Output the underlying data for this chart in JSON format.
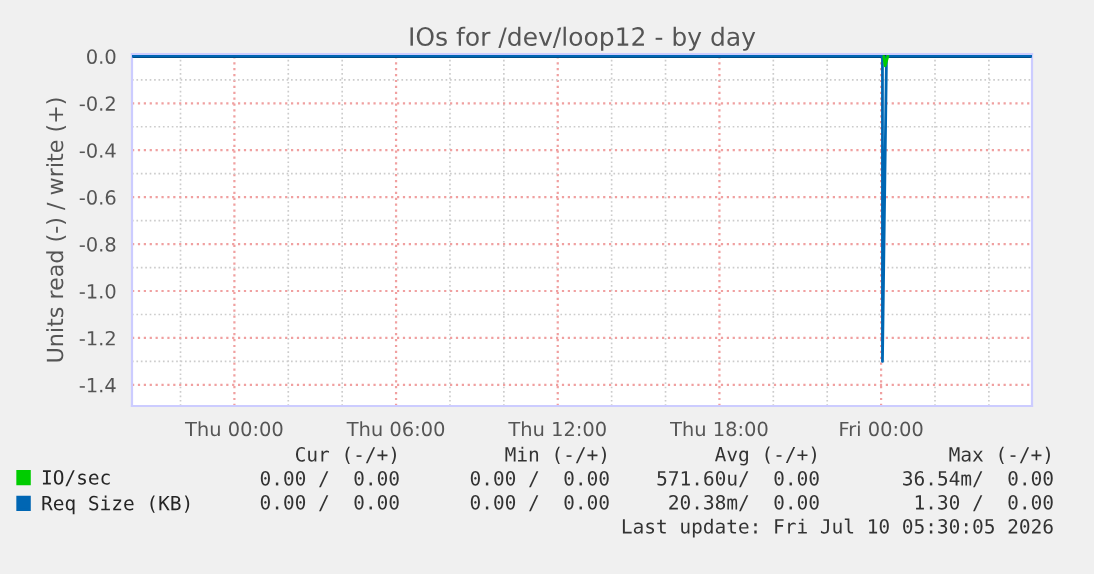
{
  "chart_data": {
    "type": "line",
    "title": "IOs for /dev/loop12 - by day",
    "ylabel": "Units read (-) / write (+)",
    "xlim": [
      "2026-07-08T20:12",
      "2026-07-10T05:36"
    ],
    "ylim": [
      -1.49,
      0.01
    ],
    "xticks": [
      {
        "value": "2026-07-09T00:00",
        "label": "Thu 00:00"
      },
      {
        "value": "2026-07-09T06:00",
        "label": "Thu 06:00"
      },
      {
        "value": "2026-07-09T12:00",
        "label": "Thu 12:00"
      },
      {
        "value": "2026-07-09T18:00",
        "label": "Thu 18:00"
      },
      {
        "value": "2026-07-10T00:00",
        "label": "Fri 00:00"
      }
    ],
    "yticks": [
      {
        "value": 0,
        "label": "0.0"
      },
      -0.2,
      -0.4,
      -0.6,
      -0.8,
      {
        "value": -1,
        "label": "-1.0"
      },
      -1.2,
      -1.4
    ],
    "grid": true,
    "legend": "bottom left",
    "series": [
      {
        "name": "IO/sec",
        "color": "#00cc00",
        "x": [
          "2026-07-10T00:06",
          "2026-07-10T00:09",
          "2026-07-10T00:15"
        ],
        "values": [
          0,
          -0.04,
          0
        ]
      },
      {
        "name": "Req Size (KB)",
        "color": "#0066b3",
        "x": [
          "2026-07-08T20:12",
          "2026-07-10T00:03",
          "2026-07-10T00:03",
          "2026-07-10T00:12",
          "2026-07-10T05:36"
        ],
        "values": [
          0,
          0,
          -1.3,
          0,
          0
        ]
      }
    ],
    "ref_lines": [
      {
        "axis": "y",
        "value": 0,
        "color": "#000000"
      }
    ],
    "annotations": [
      "Cur (-/+)",
      "Min (-/+)",
      "Avg (-/+)",
      "Max (-/+)",
      "0.00 /  0.00",
      "0.00 /  0.00",
      "571.60u/  0.00",
      "36.54m/  0.00",
      "0.00 /  0.00",
      "0.00 /  0.00",
      "20.38m/  0.00",
      "1.30 /  0.00",
      "Last update: Fri Jul 10 05:30:05 2026"
    ]
  }
}
